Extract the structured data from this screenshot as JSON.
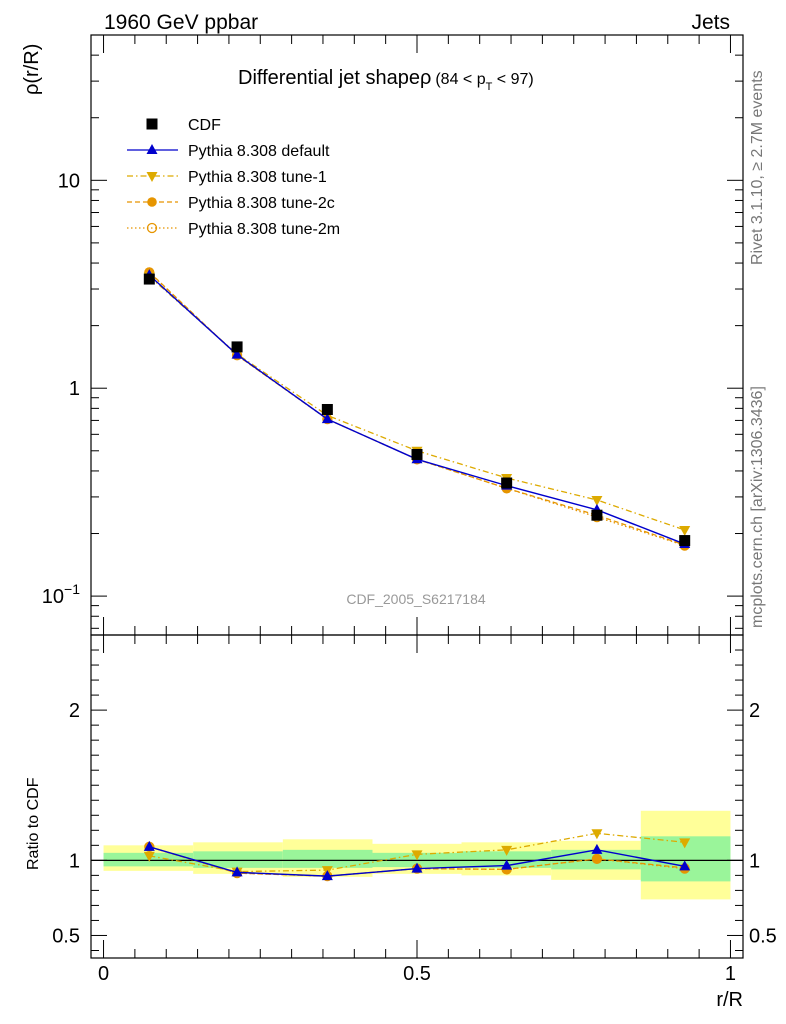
{
  "header": {
    "left": "1960 GeV ppbar",
    "right": "Jets"
  },
  "side_text": {
    "top": "Rivet 3.1.10, ≥ 2.7M events",
    "bottom": "mcplots.cern.ch [arXiv:1306.3436]"
  },
  "watermark": "CDF_2005_S6217184",
  "colors": {
    "cdf": "#000000",
    "default": "#0000cc",
    "tune1": "#ddaa00",
    "tune2c": "#e69500",
    "tune2m": "#e69500",
    "band_inner": "#9af59a",
    "band_outer": "#ffff99"
  },
  "chart_data": [
    {
      "type": "line",
      "title_main": "Differential jet shapeρ",
      "title_cut_pre": "(84 < p",
      "title_cut_sub": "T",
      "title_cut_post": " < 97)",
      "ylabel": "ρ(r/R)",
      "y_scale": "log",
      "ylim": [
        0.065,
        50
      ],
      "xlim": [
        -0.02,
        1.02
      ],
      "y_ticks": [
        {
          "value": 10,
          "label": "10"
        },
        {
          "value": 1,
          "label": "1"
        },
        {
          "value": 0.1,
          "label_base": "10",
          "label_exp": "−1"
        }
      ],
      "x": [
        0.073,
        0.213,
        0.357,
        0.5,
        0.643,
        0.787,
        0.927
      ],
      "series": [
        {
          "key": "cdf",
          "name": "CDF",
          "marker": "square",
          "values": [
            3.35,
            1.58,
            0.79,
            0.48,
            0.35,
            0.245,
            0.185
          ]
        },
        {
          "key": "default",
          "name": "Pythia 8.308 default",
          "marker": "triangle-up",
          "values": [
            3.5,
            1.45,
            0.71,
            0.455,
            0.34,
            0.26,
            0.178
          ]
        },
        {
          "key": "tune1",
          "name": "Pythia 8.308 tune-1",
          "marker": "triangle-down",
          "values": [
            3.45,
            1.46,
            0.74,
            0.5,
            0.37,
            0.29,
            0.208
          ]
        },
        {
          "key": "tune2c",
          "name": "Pythia 8.308 tune-2c",
          "marker": "circle",
          "values": [
            3.62,
            1.44,
            0.71,
            0.455,
            0.33,
            0.245,
            0.176
          ]
        },
        {
          "key": "tune2m",
          "name": "Pythia 8.308 tune-2m",
          "marker": "circle-open",
          "values": [
            3.6,
            1.44,
            0.71,
            0.455,
            0.33,
            0.24,
            0.175
          ]
        }
      ]
    },
    {
      "type": "line",
      "ylabel": "Ratio to CDF",
      "xlabel": "r/R",
      "ylim": [
        0.35,
        2.5
      ],
      "xlim": [
        -0.02,
        1.02
      ],
      "y_ticks": [
        {
          "value": 2,
          "label": "2"
        },
        {
          "value": 1,
          "label": "1"
        },
        {
          "value": 0.5,
          "label": "0.5"
        }
      ],
      "x_ticks": [
        {
          "value": 0,
          "label": "0"
        },
        {
          "value": 0.5,
          "label": "0.5"
        },
        {
          "value": 1,
          "label": "1"
        }
      ],
      "reference_line": 1,
      "bins": [
        [
          0,
          0.143
        ],
        [
          0.143,
          0.286
        ],
        [
          0.286,
          0.429
        ],
        [
          0.429,
          0.571
        ],
        [
          0.571,
          0.714
        ],
        [
          0.714,
          0.857
        ],
        [
          0.857,
          1.0
        ]
      ],
      "band_inner": [
        [
          0.96,
          1.05
        ],
        [
          0.95,
          1.06
        ],
        [
          0.95,
          1.07
        ],
        [
          0.955,
          1.05
        ],
        [
          0.95,
          1.06
        ],
        [
          0.94,
          1.07
        ],
        [
          0.86,
          1.16
        ]
      ],
      "band_outer": [
        [
          0.93,
          1.1
        ],
        [
          0.91,
          1.12
        ],
        [
          0.89,
          1.14
        ],
        [
          0.91,
          1.11
        ],
        [
          0.9,
          1.12
        ],
        [
          0.87,
          1.13
        ],
        [
          0.74,
          1.33
        ]
      ],
      "x": [
        0.073,
        0.213,
        0.357,
        0.5,
        0.643,
        0.787,
        0.927
      ],
      "series": [
        {
          "key": "default",
          "marker": "triangle-up",
          "values": [
            1.09,
            0.92,
            0.895,
            0.945,
            0.965,
            1.07,
            0.96
          ]
        },
        {
          "key": "tune1",
          "marker": "triangle-down",
          "values": [
            1.03,
            0.925,
            0.935,
            1.04,
            1.07,
            1.18,
            1.12
          ]
        },
        {
          "key": "tune2c",
          "marker": "circle",
          "values": [
            1.09,
            0.915,
            0.895,
            0.945,
            0.94,
            1.01,
            0.95
          ]
        },
        {
          "key": "tune2m",
          "marker": "circle-open",
          "values": [
            1.09,
            0.915,
            0.895,
            0.945,
            0.94,
            1.01,
            0.945
          ]
        }
      ]
    }
  ]
}
